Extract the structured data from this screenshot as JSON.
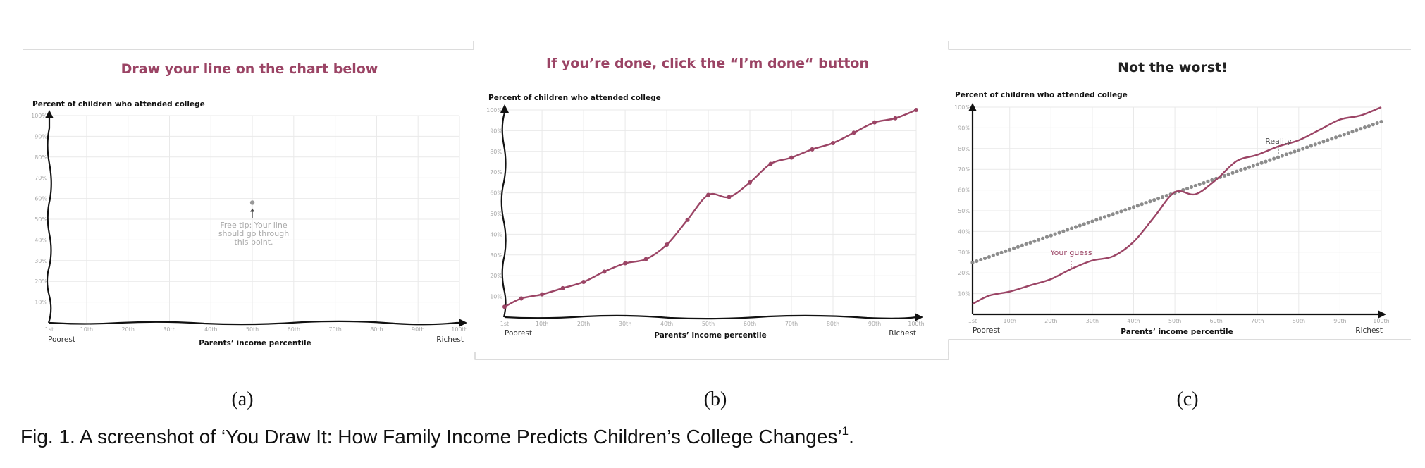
{
  "colors": {
    "guess": "#9b4465",
    "reality": "#8c8c8c",
    "axis": "#111111",
    "grid": "#e9e9e9"
  },
  "panels": [
    {
      "title": "Draw your line on the chart below",
      "title_color": "#9b4465",
      "sublabel": "(a)",
      "ylabel": "Percent of children who attended college",
      "xlabel": "Parents’ income percentile",
      "left_end": "Poorest",
      "right_end": "Richest",
      "tip": [
        "Free tip: Your line",
        "should go through",
        "this point."
      ]
    },
    {
      "title": "If you’re done, click the “I’m done“ button",
      "title_color": "#9b4465",
      "sublabel": "(b)",
      "ylabel": "Percent of children who attended college",
      "xlabel": "Parents’ income percentile",
      "left_end": "Poorest",
      "right_end": "Richest"
    },
    {
      "title": "Not the worst!",
      "title_color": "#222222",
      "sublabel": "(c)",
      "ylabel": "Percent of children who attended college",
      "xlabel": "Parents’ income percentile",
      "left_end": "Poorest",
      "right_end": "Richest",
      "reality_label": "Reality",
      "guess_label": "Your guess"
    }
  ],
  "chart_data": [
    {
      "type": "line",
      "title": "Draw your line on the chart below",
      "ylabel": "Percent of children who attended college",
      "xlabel": "Parents’ income percentile",
      "x_ticks": [
        "1st",
        "10th",
        "20th",
        "30th",
        "40th",
        "50th",
        "60th",
        "70th",
        "80th",
        "90th",
        "100th"
      ],
      "y_ticks": [
        "10%",
        "20%",
        "30%",
        "40%",
        "50%",
        "60%",
        "70%",
        "80%",
        "90%",
        "100%"
      ],
      "xlim": [
        1,
        100
      ],
      "ylim": [
        0,
        100
      ],
      "grid": true,
      "hint_point": {
        "x": 50,
        "y": 58
      },
      "series": []
    },
    {
      "type": "line",
      "title": "If you’re done, click the “I’m done“ button",
      "ylabel": "Percent of children who attended college",
      "xlabel": "Parents’ income percentile",
      "x_ticks": [
        "1st",
        "10th",
        "20th",
        "30th",
        "40th",
        "50th",
        "60th",
        "70th",
        "80th",
        "90th",
        "100th"
      ],
      "y_ticks": [
        "10%",
        "20%",
        "30%",
        "40%",
        "50%",
        "60%",
        "70%",
        "80%",
        "90%",
        "100%"
      ],
      "xlim": [
        1,
        100
      ],
      "ylim": [
        0,
        100
      ],
      "grid": true,
      "series": [
        {
          "x": [
            1,
            5,
            10,
            15,
            20,
            25,
            30,
            35,
            40,
            45,
            50,
            55,
            60,
            65,
            70,
            75,
            80,
            85,
            90,
            95,
            100
          ],
          "y": [
            5,
            9,
            11,
            14,
            17,
            22,
            26,
            28,
            35,
            47,
            59,
            58,
            65,
            74,
            77,
            81,
            84,
            89,
            94,
            96,
            100
          ]
        }
      ]
    },
    {
      "type": "line",
      "title": "Not the worst!",
      "ylabel": "Percent of children who attended college",
      "xlabel": "Parents’ income percentile",
      "x_ticks": [
        "1st",
        "10th",
        "20th",
        "30th",
        "40th",
        "50th",
        "60th",
        "70th",
        "80th",
        "90th",
        "100th"
      ],
      "y_ticks": [
        "10%",
        "20%",
        "30%",
        "40%",
        "50%",
        "60%",
        "70%",
        "80%",
        "90%",
        "100%"
      ],
      "xlim": [
        1,
        100
      ],
      "ylim": [
        0,
        100
      ],
      "grid": true,
      "series": [
        {
          "name": "Your guess",
          "x": [
            1,
            5,
            10,
            15,
            20,
            25,
            30,
            35,
            40,
            45,
            50,
            55,
            60,
            65,
            70,
            75,
            80,
            85,
            90,
            95,
            100
          ],
          "y": [
            5,
            9,
            11,
            14,
            17,
            22,
            26,
            28,
            35,
            47,
            59,
            58,
            65,
            74,
            77,
            81,
            84,
            89,
            94,
            96,
            100
          ]
        },
        {
          "name": "Reality",
          "start": 25,
          "end": 93,
          "points": 100
        }
      ]
    }
  ],
  "caption": "Fig. 1. A screenshot of ‘You Draw It: How Family Income Predicts Children’s College Changes’",
  "caption_superscript": "1",
  "caption_end": "."
}
